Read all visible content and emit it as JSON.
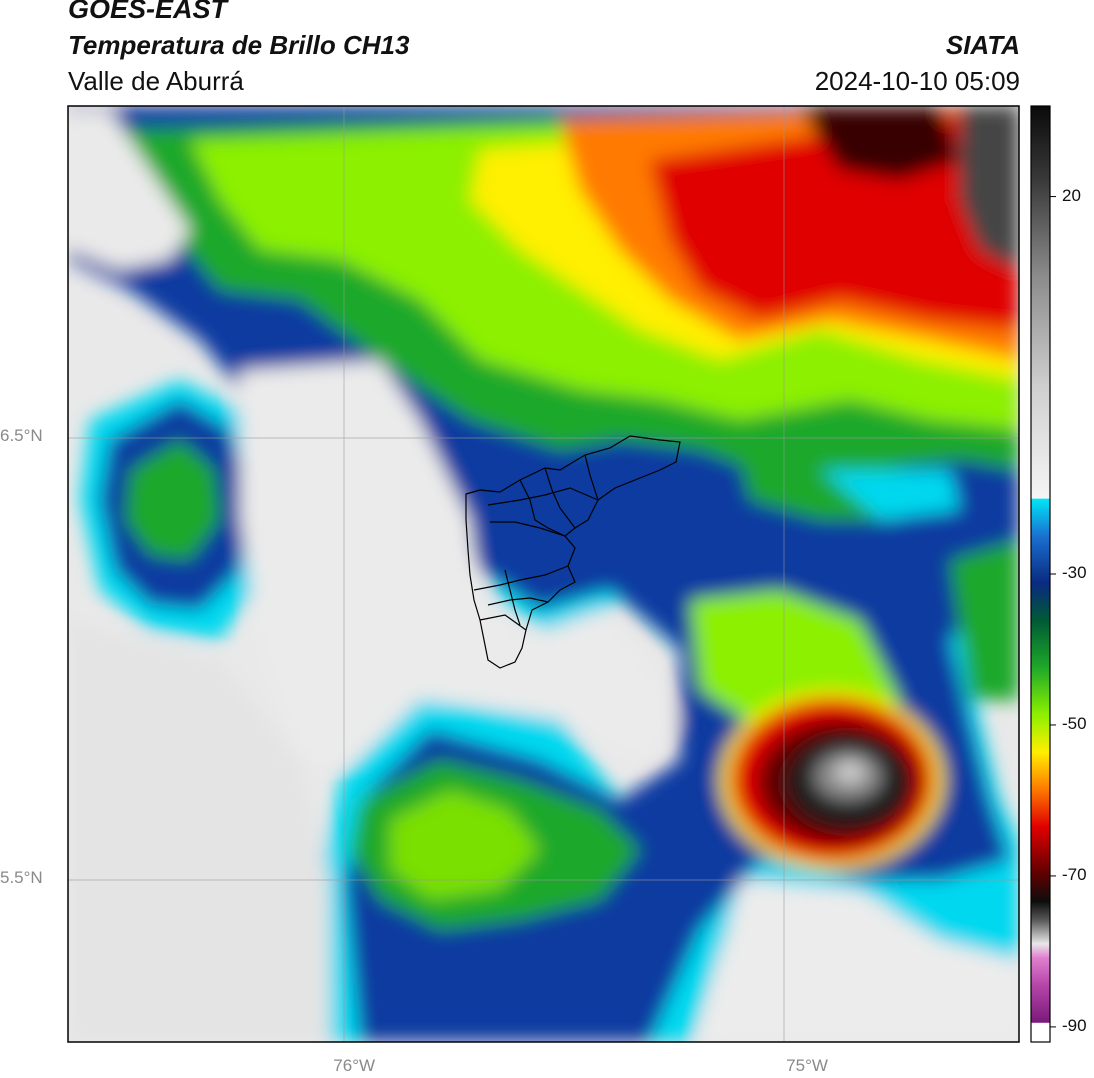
{
  "header": {
    "satellite": "GOES-EAST",
    "product": "Temperatura de Brillo CH13",
    "region": "Valle de Aburrá",
    "agency": "SIATA",
    "datetime": "2024-10-10 05:09"
  },
  "map": {
    "lon_range": [
      -76.63,
      -74.53
    ],
    "lat_range": [
      5.13,
      7.25
    ],
    "lon_ticks": [
      {
        "value": -76,
        "label": "76°W"
      },
      {
        "value": -75,
        "label": "75°W"
      }
    ],
    "lat_ticks": [
      {
        "value": 6.5,
        "label": "6.5°N"
      },
      {
        "value": 5.5,
        "label": "5.5°N"
      }
    ],
    "grid": true
  },
  "colorbar": {
    "range": [
      -92,
      32
    ],
    "ticks": [
      {
        "value": 20,
        "label": "20"
      },
      {
        "value": -30,
        "label": "-30"
      },
      {
        "value": -50,
        "label": "-50"
      },
      {
        "value": -70,
        "label": "-70"
      },
      {
        "value": -90,
        "label": "-90"
      }
    ],
    "colors": {
      "white": "#f2f2f2",
      "cyan": "#00e5f5",
      "blue": "#0a3aa0",
      "green": "#1fa82a",
      "lime": "#8cf000",
      "yellow": "#ffef00",
      "orange": "#ff7a00",
      "red": "#e00000",
      "black": "#111111",
      "magenta": "#d24fb5"
    }
  }
}
